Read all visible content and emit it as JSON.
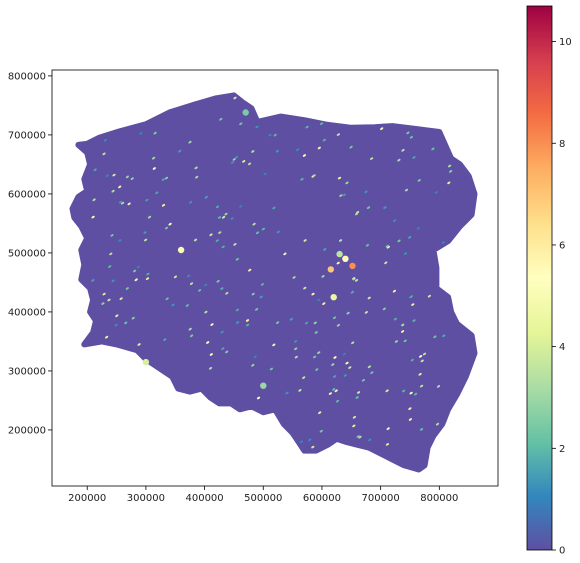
{
  "chart_data": {
    "type": "scatter",
    "title": "",
    "xlabel": "",
    "ylabel": "",
    "xlim": [
      140000,
      900000
    ],
    "ylim": [
      105000,
      810000
    ],
    "x_ticks": [
      200000,
      300000,
      400000,
      500000,
      600000,
      700000,
      800000
    ],
    "y_ticks": [
      200000,
      300000,
      400000,
      500000,
      600000,
      700000,
      800000
    ],
    "x_tick_labels": [
      "200000",
      "300000",
      "400000",
      "500000",
      "600000",
      "700000",
      "800000"
    ],
    "y_tick_labels": [
      "200000",
      "300000",
      "400000",
      "500000",
      "600000",
      "700000",
      "800000"
    ],
    "colormap": "Spectral_r",
    "colorbar": {
      "range": [
        0,
        10.7
      ],
      "ticks": [
        0,
        2,
        4,
        6,
        8,
        10
      ],
      "tick_labels": [
        "0",
        "2",
        "4",
        "6",
        "8",
        "10"
      ]
    },
    "base_color": "#5e4fa2",
    "outline": [
      [
        200000,
        685000
      ],
      [
        185000,
        683000
      ],
      [
        200000,
        670000
      ],
      [
        205000,
        650000
      ],
      [
        195000,
        625000
      ],
      [
        200000,
        605000
      ],
      [
        185000,
        595000
      ],
      [
        175000,
        575000
      ],
      [
        178000,
        560000
      ],
      [
        190000,
        545000
      ],
      [
        200000,
        525000
      ],
      [
        190000,
        505000
      ],
      [
        195000,
        480000
      ],
      [
        190000,
        455000
      ],
      [
        205000,
        440000
      ],
      [
        210000,
        420000
      ],
      [
        205000,
        400000
      ],
      [
        215000,
        385000
      ],
      [
        210000,
        365000
      ],
      [
        195000,
        345000
      ],
      [
        225000,
        350000
      ],
      [
        250000,
        345000
      ],
      [
        285000,
        335000
      ],
      [
        300000,
        320000
      ],
      [
        330000,
        300000
      ],
      [
        345000,
        290000
      ],
      [
        355000,
        270000
      ],
      [
        375000,
        265000
      ],
      [
        395000,
        270000
      ],
      [
        410000,
        255000
      ],
      [
        425000,
        245000
      ],
      [
        445000,
        245000
      ],
      [
        460000,
        235000
      ],
      [
        480000,
        240000
      ],
      [
        500000,
        230000
      ],
      [
        520000,
        235000
      ],
      [
        535000,
        210000
      ],
      [
        550000,
        195000
      ],
      [
        560000,
        180000
      ],
      [
        570000,
        165000
      ],
      [
        590000,
        165000
      ],
      [
        610000,
        175000
      ],
      [
        625000,
        185000
      ],
      [
        640000,
        180000
      ],
      [
        660000,
        175000
      ],
      [
        680000,
        170000
      ],
      [
        700000,
        160000
      ],
      [
        720000,
        150000
      ],
      [
        740000,
        140000
      ],
      [
        765000,
        133000
      ],
      [
        775000,
        140000
      ],
      [
        780000,
        170000
      ],
      [
        790000,
        190000
      ],
      [
        805000,
        210000
      ],
      [
        815000,
        235000
      ],
      [
        830000,
        260000
      ],
      [
        845000,
        290000
      ],
      [
        860000,
        330000
      ],
      [
        855000,
        360000
      ],
      [
        830000,
        380000
      ],
      [
        820000,
        400000
      ],
      [
        815000,
        425000
      ],
      [
        795000,
        440000
      ],
      [
        795000,
        475000
      ],
      [
        790000,
        505000
      ],
      [
        815000,
        520000
      ],
      [
        835000,
        545000
      ],
      [
        855000,
        565000
      ],
      [
        860000,
        600000
      ],
      [
        850000,
        630000
      ],
      [
        835000,
        650000
      ],
      [
        820000,
        660000
      ],
      [
        800000,
        705000
      ],
      [
        760000,
        710000
      ],
      [
        720000,
        715000
      ],
      [
        690000,
        713000
      ],
      [
        650000,
        712000
      ],
      [
        610000,
        717000
      ],
      [
        570000,
        725000
      ],
      [
        530000,
        731000
      ],
      [
        490000,
        722000
      ],
      [
        480000,
        745000
      ],
      [
        465000,
        755000
      ],
      [
        450000,
        767000
      ],
      [
        420000,
        762000
      ],
      [
        385000,
        752000
      ],
      [
        340000,
        738000
      ],
      [
        300000,
        718000
      ],
      [
        255000,
        706000
      ],
      [
        220000,
        695000
      ]
    ],
    "hotspots": [
      {
        "x": 640000,
        "y": 490000,
        "value": 5.5
      },
      {
        "x": 652000,
        "y": 478000,
        "value": 8.0
      },
      {
        "x": 630000,
        "y": 498000,
        "value": 3.5
      },
      {
        "x": 615000,
        "y": 472000,
        "value": 7.0
      },
      {
        "x": 500000,
        "y": 275000,
        "value": 3.0
      },
      {
        "x": 470000,
        "y": 738000,
        "value": 2.5
      },
      {
        "x": 360000,
        "y": 505000,
        "value": 5.0
      },
      {
        "x": 620000,
        "y": 425000,
        "value": 4.5
      },
      {
        "x": 300000,
        "y": 315000,
        "value": 4.0
      }
    ]
  }
}
